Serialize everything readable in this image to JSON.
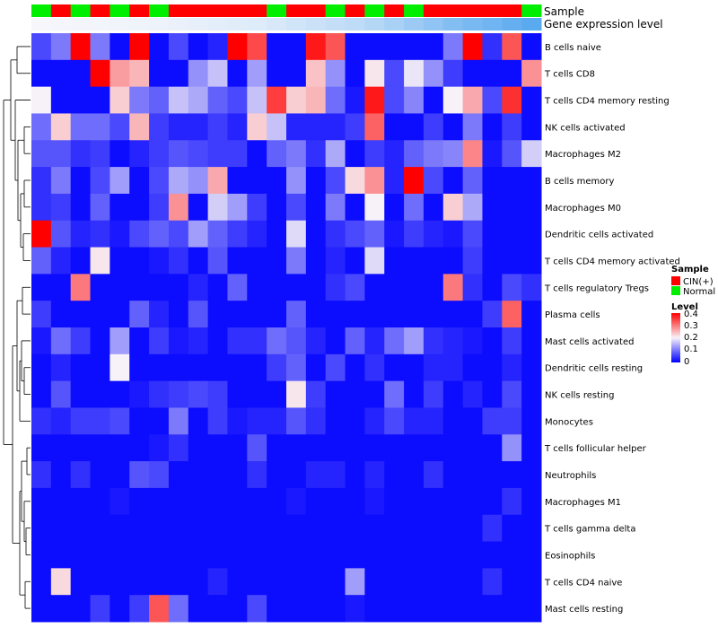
{
  "chart_data": {
    "type": "heatmap",
    "annotation_labels": {
      "sample": "Sample",
      "gene_expression": "Gene expression level"
    },
    "sample_groups": [
      "Normal",
      "CIN(+)",
      "Normal",
      "CIN(+)",
      "Normal",
      "CIN(+)",
      "Normal",
      "CIN(+)",
      "CIN(+)",
      "CIN(+)",
      "CIN(+)",
      "CIN(+)",
      "Normal",
      "CIN(+)",
      "CIN(+)",
      "Normal",
      "CIN(+)",
      "Normal",
      "CIN(+)",
      "Normal",
      "CIN(+)",
      "CIN(+)",
      "CIN(+)",
      "CIN(+)",
      "CIN(+)",
      "Normal"
    ],
    "gene_expression": [
      0,
      0.01,
      0.02,
      0.03,
      0.04,
      0.05,
      0.06,
      0.08,
      0.1,
      0.12,
      0.14,
      0.16,
      0.2,
      0.24,
      0.28,
      0.32,
      0.36,
      0.42,
      0.5,
      0.58,
      0.66,
      0.74,
      0.8,
      0.86,
      0.93,
      1
    ],
    "rows": [
      "B cells naive",
      "T cells CD8",
      "T cells CD4 memory resting",
      "NK cells activated",
      "Macrophages M2",
      "B cells memory",
      "Macrophages M0",
      "Dendritic cells activated",
      "T cells CD4 memory activated",
      "T cells regulatory  Tregs",
      "Plasma cells",
      "Mast cells activated",
      "Dendritic cells resting",
      "NK cells resting",
      "Monocytes",
      "T cells follicular helper",
      "Neutrophils",
      "Macrophages M1",
      "T cells gamma delta",
      "Eosinophils",
      "T cells CD4 naive",
      "Mast cells resting"
    ],
    "values": [
      [
        0.06,
        0.1,
        0.4,
        0.1,
        0.01,
        0.4,
        0.01,
        0.06,
        0.01,
        0.03,
        0.4,
        0.34,
        0.01,
        0.01,
        0.38,
        0.33,
        0.01,
        0.01,
        0.01,
        0.01,
        0.01,
        0.1,
        0.4,
        0.04,
        0.33,
        0.01
      ],
      [
        0.01,
        0.01,
        0.01,
        0.4,
        0.27,
        0.25,
        0.01,
        0.01,
        0.12,
        0.16,
        0.01,
        0.13,
        0.01,
        0.01,
        0.24,
        0.12,
        0.01,
        0.21,
        0.06,
        0.19,
        0.12,
        0.05,
        0.01,
        0.01,
        0.01,
        0.28
      ],
      [
        0.2,
        0.01,
        0.01,
        0.01,
        0.23,
        0.1,
        0.08,
        0.16,
        0.14,
        0.08,
        0.06,
        0.16,
        0.35,
        0.23,
        0.25,
        0.09,
        0.02,
        0.38,
        0.06,
        0.11,
        0.01,
        0.2,
        0.26,
        0.06,
        0.36,
        0.01
      ],
      [
        0.09,
        0.23,
        0.09,
        0.09,
        0.06,
        0.25,
        0.05,
        0.03,
        0.03,
        0.05,
        0.03,
        0.23,
        0.16,
        0.03,
        0.03,
        0.03,
        0.05,
        0.32,
        0.01,
        0.01,
        0.05,
        0.01,
        0.1,
        0.01,
        0.05,
        0.01
      ],
      [
        0.07,
        0.07,
        0.04,
        0.05,
        0.01,
        0.03,
        0.05,
        0.07,
        0.06,
        0.05,
        0.05,
        0.01,
        0.08,
        0.1,
        0.04,
        0.14,
        0.01,
        0.05,
        0.03,
        0.08,
        0.1,
        0.11,
        0.29,
        0.02,
        0.07,
        0.17
      ],
      [
        0.04,
        0.1,
        0.01,
        0.06,
        0.13,
        0.01,
        0.06,
        0.14,
        0.12,
        0.26,
        0.01,
        0.01,
        0.01,
        0.12,
        0.01,
        0.06,
        0.22,
        0.28,
        0.03,
        0.4,
        0.06,
        0.01,
        0.08,
        0.01,
        0.01,
        0.01
      ],
      [
        0.04,
        0.05,
        0.01,
        0.08,
        0.01,
        0.01,
        0.05,
        0.28,
        0.01,
        0.17,
        0.13,
        0.05,
        0.01,
        0.06,
        0.01,
        0.1,
        0.01,
        0.2,
        0.01,
        0.09,
        0.01,
        0.23,
        0.14,
        0.01,
        0.01,
        0.01
      ],
      [
        0.4,
        0.07,
        0.03,
        0.04,
        0.02,
        0.06,
        0.08,
        0.06,
        0.13,
        0.08,
        0.05,
        0.03,
        0.01,
        0.18,
        0.01,
        0.04,
        0.06,
        0.08,
        0.02,
        0.05,
        0.03,
        0.02,
        0.06,
        0.01,
        0.01,
        0.01
      ],
      [
        0.08,
        0.03,
        0.01,
        0.21,
        0.01,
        0.01,
        0.02,
        0.04,
        0.01,
        0.07,
        0.01,
        0.01,
        0.01,
        0.1,
        0.01,
        0.03,
        0.01,
        0.18,
        0.01,
        0.01,
        0.01,
        0.01,
        0.05,
        0.01,
        0.01,
        0.01
      ],
      [
        0.01,
        0.01,
        0.3,
        0.01,
        0.01,
        0.01,
        0.01,
        0.01,
        0.03,
        0.01,
        0.08,
        0.01,
        0.01,
        0.01,
        0.01,
        0.04,
        0.06,
        0.01,
        0.01,
        0.01,
        0.01,
        0.3,
        0.04,
        0.01,
        0.06,
        0.04
      ],
      [
        0.05,
        0.01,
        0.01,
        0.01,
        0.01,
        0.08,
        0.03,
        0.01,
        0.07,
        0.01,
        0.01,
        0.01,
        0.01,
        0.08,
        0.01,
        0.01,
        0.01,
        0.01,
        0.01,
        0.01,
        0.01,
        0.01,
        0.01,
        0.05,
        0.32,
        0.01
      ],
      [
        0.02,
        0.09,
        0.05,
        0.01,
        0.13,
        0.01,
        0.05,
        0.02,
        0.03,
        0.01,
        0.04,
        0.04,
        0.09,
        0.07,
        0.03,
        0.01,
        0.08,
        0.03,
        0.09,
        0.13,
        0.04,
        0.03,
        0.02,
        0.01,
        0.05,
        0.01
      ],
      [
        0.01,
        0.03,
        0.01,
        0.01,
        0.2,
        0.01,
        0.01,
        0.01,
        0.01,
        0.01,
        0.01,
        0.01,
        0.05,
        0.08,
        0.01,
        0.06,
        0.01,
        0.04,
        0.01,
        0.01,
        0.03,
        0.03,
        0.01,
        0.01,
        0.03,
        0.01
      ],
      [
        0.01,
        0.07,
        0.01,
        0.01,
        0.01,
        0.02,
        0.04,
        0.05,
        0.06,
        0.05,
        0.01,
        0.01,
        0.01,
        0.21,
        0.05,
        0.01,
        0.01,
        0.01,
        0.09,
        0.01,
        0.05,
        0.01,
        0.03,
        0.01,
        0.06,
        0.01
      ],
      [
        0.04,
        0.03,
        0.05,
        0.05,
        0.06,
        0.01,
        0.01,
        0.1,
        0.01,
        0.05,
        0.02,
        0.03,
        0.03,
        0.07,
        0.04,
        0.01,
        0.01,
        0.03,
        0.06,
        0.03,
        0.03,
        0.01,
        0.01,
        0.05,
        0.05,
        0.01
      ],
      [
        0.01,
        0.01,
        0.01,
        0.01,
        0.01,
        0.01,
        0.02,
        0.04,
        0.01,
        0.01,
        0.01,
        0.07,
        0.01,
        0.01,
        0.01,
        0.01,
        0.01,
        0.01,
        0.01,
        0.01,
        0.01,
        0.01,
        0.01,
        0.01,
        0.12,
        0.01
      ],
      [
        0.04,
        0.01,
        0.04,
        0.01,
        0.01,
        0.07,
        0.06,
        0.01,
        0.01,
        0.01,
        0.01,
        0.04,
        0.01,
        0.01,
        0.03,
        0.03,
        0.01,
        0.03,
        0.01,
        0.01,
        0.04,
        0.01,
        0.01,
        0.01,
        0.01,
        0.01
      ],
      [
        0.01,
        0.01,
        0.01,
        0.01,
        0.02,
        0.01,
        0.01,
        0.01,
        0.01,
        0.01,
        0.01,
        0.01,
        0.01,
        0.02,
        0.01,
        0.01,
        0.01,
        0.02,
        0.01,
        0.01,
        0.01,
        0.01,
        0.01,
        0.01,
        0.04,
        0.01
      ],
      [
        0.01,
        0.01,
        0.01,
        0.01,
        0.01,
        0.01,
        0.01,
        0.01,
        0.01,
        0.01,
        0.01,
        0.01,
        0.01,
        0.01,
        0.01,
        0.01,
        0.01,
        0.01,
        0.01,
        0.01,
        0.01,
        0.01,
        0.01,
        0.04,
        0.01,
        0.01
      ],
      [
        0.01,
        0.01,
        0.01,
        0.01,
        0.01,
        0.01,
        0.01,
        0.01,
        0.01,
        0.01,
        0.01,
        0.01,
        0.01,
        0.01,
        0.01,
        0.01,
        0.01,
        0.01,
        0.01,
        0.01,
        0.01,
        0.01,
        0.01,
        0.01,
        0.01,
        0.01
      ],
      [
        0.01,
        0.22,
        0.01,
        0.01,
        0.01,
        0.01,
        0.01,
        0.01,
        0.01,
        0.03,
        0.01,
        0.01,
        0.01,
        0.01,
        0.01,
        0.01,
        0.13,
        0.01,
        0.01,
        0.01,
        0.01,
        0.01,
        0.01,
        0.04,
        0.01,
        0.01
      ],
      [
        0.01,
        0.01,
        0.01,
        0.05,
        0.01,
        0.05,
        0.33,
        0.09,
        0.01,
        0.01,
        0.01,
        0.06,
        0.01,
        0.01,
        0.01,
        0.01,
        0.02,
        0.01,
        0.01,
        0.01,
        0.01,
        0.01,
        0.01,
        0.01,
        0.01,
        0.01
      ]
    ],
    "color_scale": {
      "min": 0,
      "max": 0.4,
      "low_color": "#0000ff",
      "mid_color": "#f7f2f7",
      "high_color": "#ff0000",
      "mid_value": 0.2
    },
    "legend_sample": {
      "title": "Sample",
      "entries": [
        {
          "label": "CIN(+)",
          "color": "#ff0000"
        },
        {
          "label": "Normal",
          "color": "#00ee00"
        }
      ]
    },
    "legend_level": {
      "title": "Level",
      "ticks": [
        "0.4",
        "0.3",
        "0.2",
        "0.1",
        "0"
      ]
    }
  }
}
